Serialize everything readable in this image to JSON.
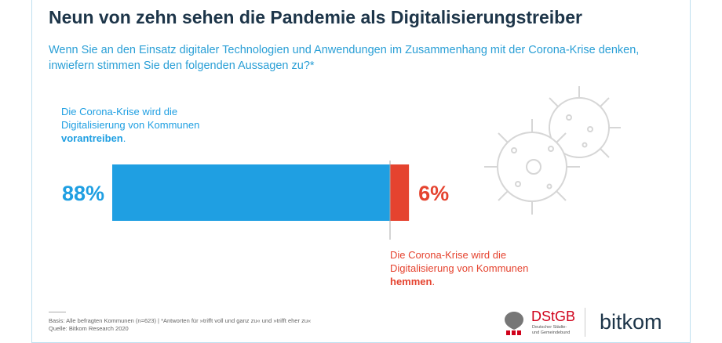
{
  "title": "Neun von zehn sehen die Pandemie als Digitalisierungstreiber",
  "subtitle": [
    "Wenn Sie an den Einsatz digitaler Technologien und Anwendungen im Zusammenhang mit der Corona-Krise denken,",
    "inwiefern stimmen Sie den folgenden Aussagen zu?*"
  ],
  "chart_data": {
    "type": "stacked-bar",
    "series": [
      {
        "color": "#1f9fe2",
        "values": [
          88
        ],
        "value_labels": [
          "88%"
        ],
        "annotation": {
          "lines": [
            "Die Corona-Krise wird die",
            "Digitalisierung von Kommunen"
          ],
          "emphasis": "vorantreiben",
          "end": "."
        }
      },
      {
        "color": "#e5432f",
        "values": [
          6
        ],
        "value_labels": [
          "6%"
        ],
        "annotation": {
          "lines": [
            "Die Corona-Krise wird die",
            "Digitalisierung von Kommunen"
          ],
          "emphasis": "hemmen",
          "end": "."
        }
      }
    ]
  },
  "footnote": [
    "Basis: Alle befragten Kommunen (n=623) | *Antworten für »trifft voll und ganz zu« und »trifft eher zu«",
    "Quelle: Bitkom Research 2020"
  ],
  "logos": {
    "dstgb": "DStGB",
    "dstgb_name": [
      "Deutscher Städte-",
      "und Gemeindebund"
    ],
    "bitkom": "bitkom"
  }
}
